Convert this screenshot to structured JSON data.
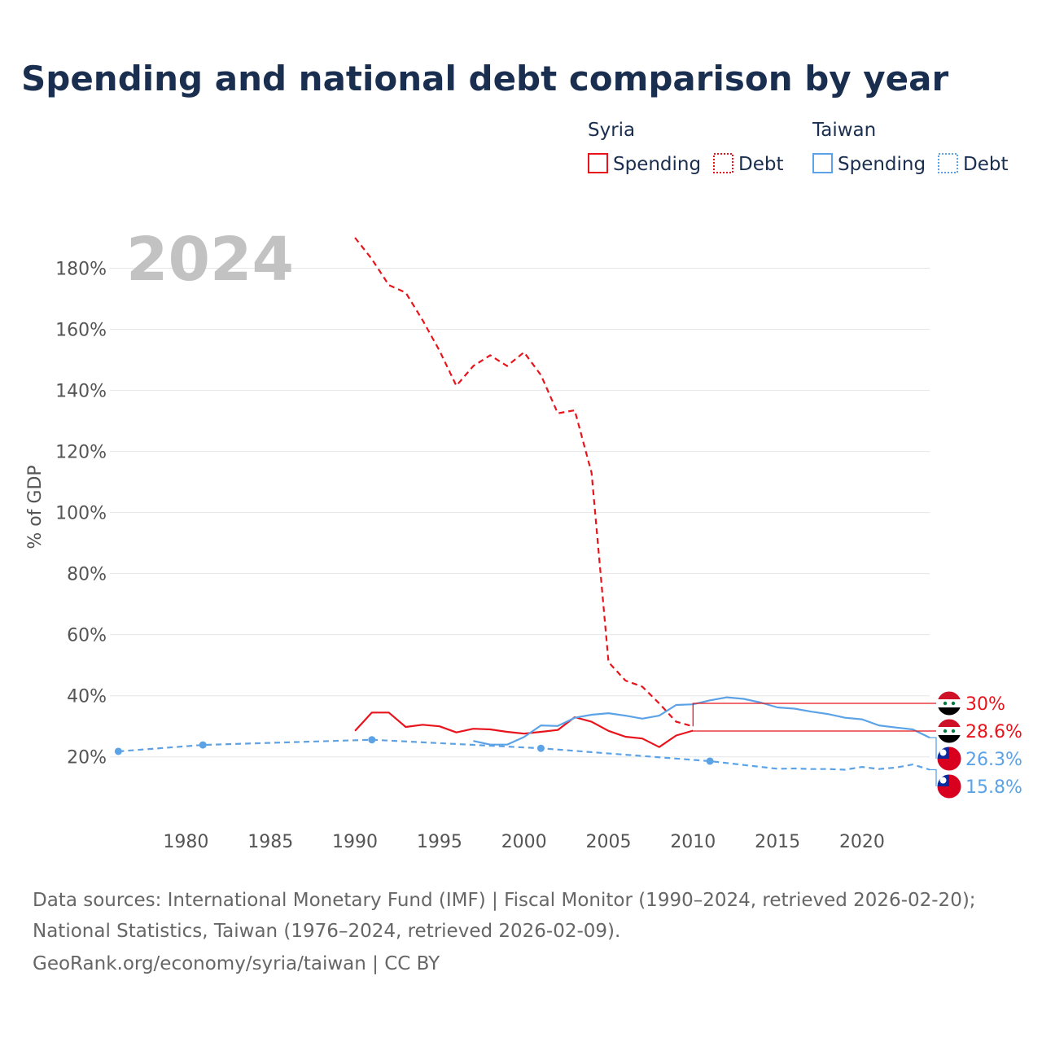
{
  "title": "Spending and national debt comparison by year",
  "legend": {
    "groups": [
      {
        "name": "Syria",
        "color": "#e8141c",
        "items": [
          {
            "label": "Spending",
            "style": "solid"
          },
          {
            "label": "Debt",
            "style": "dotted"
          }
        ]
      },
      {
        "name": "Taiwan",
        "color": "#5ba3e6",
        "items": [
          {
            "label": "Spending",
            "style": "solid"
          },
          {
            "label": "Debt",
            "style": "dotted"
          }
        ]
      }
    ]
  },
  "year_label": "2024",
  "footer": {
    "line1": "Data sources: International Monetary Fund (IMF) | Fiscal Monitor (1990–2024, retrieved 2026-02-20);",
    "line2": "National Statistics, Taiwan (1976–2024, retrieved 2026-02-09).",
    "line3": "GeoRank.org/economy/syria/taiwan | CC BY"
  },
  "chart_data": {
    "type": "line",
    "title": "Spending and national debt comparison by year",
    "xlabel": "",
    "ylabel": "% of GDP",
    "xlim": [
      1975.5,
      2024
    ],
    "ylim": [
      9,
      190
    ],
    "x_ticks": [
      1980,
      1985,
      1990,
      1995,
      2000,
      2005,
      2010,
      2015,
      2020
    ],
    "x_tick_labels": [
      "1980",
      "1985",
      "1990",
      "1995",
      "2000",
      "2005",
      "2010",
      "2015",
      "2020"
    ],
    "y_ticks": [
      20,
      40,
      60,
      80,
      100,
      120,
      140,
      160,
      180
    ],
    "y_tick_labels": [
      "20%",
      "40%",
      "60%",
      "80%",
      "100%",
      "120%",
      "140%",
      "160%",
      "180%"
    ],
    "grid": true,
    "series": [
      {
        "name": "Syria Debt",
        "country": "Syria",
        "indicator": "Debt",
        "color": "#e8141c",
        "dash": "dashed",
        "x": [
          1990,
          1991,
          1992,
          1993,
          1994,
          1995,
          1996,
          1997,
          1998,
          1999,
          2000,
          2001,
          2002,
          2003,
          2004,
          2005,
          2006,
          2007,
          2008,
          2009,
          2010
        ],
        "y": [
          190,
          183,
          174.5,
          172,
          163,
          153,
          141.5,
          148,
          151.5,
          148,
          152.5,
          145,
          132.5,
          133.5,
          113,
          51,
          45,
          43,
          37.5,
          31.5,
          30
        ]
      },
      {
        "name": "Syria Spending",
        "country": "Syria",
        "indicator": "Spending",
        "color": "#e8141c",
        "dash": "solid",
        "x": [
          1990,
          1991,
          1992,
          1993,
          1994,
          1995,
          1996,
          1997,
          1998,
          1999,
          2000,
          2001,
          2002,
          2003,
          2004,
          2005,
          2006,
          2007,
          2008,
          2009,
          2010
        ],
        "y": [
          28.5,
          34.5,
          34.5,
          29.8,
          30.5,
          30,
          28,
          29.2,
          29,
          28.2,
          27.6,
          28.2,
          28.8,
          33,
          31.5,
          28.5,
          26.6,
          26,
          23.2,
          27,
          28.6
        ]
      },
      {
        "name": "Taiwan Spending",
        "country": "Taiwan",
        "indicator": "Spending",
        "color": "#5ba3e6",
        "dash": "solid",
        "x": [
          1997,
          1998,
          1999,
          2000,
          2001,
          2002,
          2003,
          2004,
          2005,
          2006,
          2007,
          2008,
          2009,
          2010,
          2011,
          2012,
          2013,
          2014,
          2015,
          2016,
          2017,
          2018,
          2019,
          2020,
          2021,
          2022,
          2023,
          2024
        ],
        "y": [
          25.2,
          24,
          24,
          26.5,
          30.3,
          30.1,
          32.8,
          33.8,
          34.3,
          33.5,
          32.5,
          33.5,
          37,
          37.2,
          38.5,
          39.5,
          39,
          37.8,
          36.2,
          35.8,
          34.8,
          34,
          32.8,
          32.3,
          30.3,
          29.6,
          29,
          26.3
        ]
      },
      {
        "name": "Taiwan Debt",
        "country": "Taiwan",
        "indicator": "Debt",
        "color": "#5ba3e6",
        "dash": "dashed",
        "x": [
          1976,
          1981,
          1991,
          2001,
          2011,
          2015,
          2016,
          2017,
          2018,
          2019,
          2020,
          2021,
          2022,
          2023,
          2024
        ],
        "y": [
          21.8,
          23.9,
          25.6,
          22.8,
          18.6,
          16.1,
          16.2,
          16,
          16,
          15.8,
          16.7,
          16,
          16.5,
          17.5,
          15.8
        ],
        "markers": [
          1976,
          1981,
          1991,
          2001,
          2011
        ]
      }
    ],
    "end_labels": [
      {
        "text": "30%",
        "value": 30,
        "country": "Syria",
        "color": "#e8141c"
      },
      {
        "text": "28.6%",
        "value": 28.6,
        "country": "Syria",
        "color": "#e8141c"
      },
      {
        "text": "26.3%",
        "value": 26.3,
        "country": "Taiwan",
        "color": "#5ba3e6"
      },
      {
        "text": "15.8%",
        "value": 15.8,
        "country": "Taiwan",
        "color": "#5ba3e6"
      }
    ]
  }
}
